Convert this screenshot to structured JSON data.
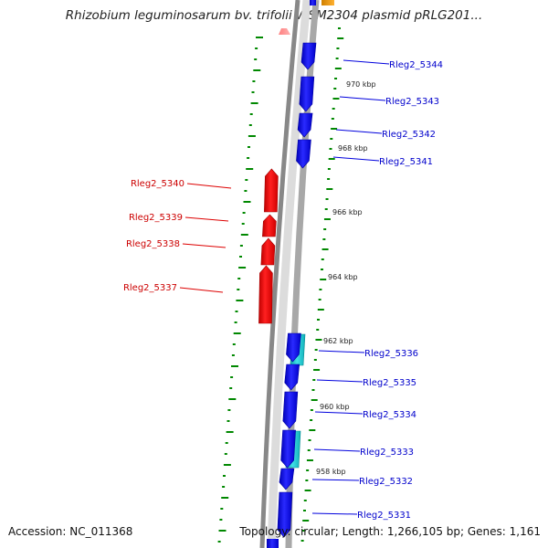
{
  "title": "Rhizobium leguminosarum bv. trifolii WSM2304 plasmid pRLG201...",
  "footer": {
    "accession": "Accession: NC_011368",
    "topology": "Topology: circular; Length: 1,266,105 bp; Genes: 1,161"
  },
  "colors": {
    "forward_gene": "#1010f0",
    "reverse_gene": "#ee1010",
    "cyan_feature": "#20c8cc",
    "orange_feature": "#f0a020",
    "gc_ticks": "#008800",
    "backbone": "#888888"
  },
  "scale_labels": [
    "970 kbp",
    "968 kbp",
    "966 kbp",
    "964 kbp",
    "962 kbp",
    "960 kbp",
    "958 kbp"
  ],
  "forward_genes": [
    "Rleg2_5344",
    "Rleg2_5343",
    "Rleg2_5342",
    "Rleg2_5341",
    "Rleg2_5336",
    "Rleg2_5335",
    "Rleg2_5334",
    "Rleg2_5333",
    "Rleg2_5332",
    "Rleg2_5331"
  ],
  "reverse_genes": [
    "Rleg2_5340",
    "Rleg2_5339",
    "Rleg2_5338",
    "Rleg2_5337"
  ]
}
